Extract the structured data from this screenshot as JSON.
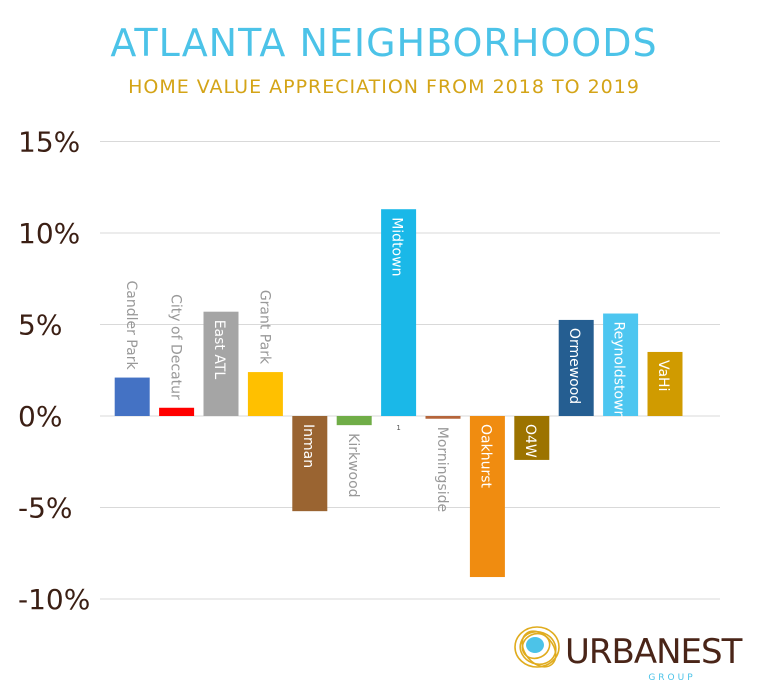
{
  "chart_data": {
    "type": "bar",
    "title": "ATLANTA NEIGHBORHOODS",
    "subtitle": "HOME VALUE APPRECIATION FROM 2018 TO 2019",
    "xlabel": "",
    "ylabel": "",
    "ylim": [
      -10,
      15
    ],
    "yticks": [
      15,
      10,
      5,
      0,
      -5,
      -10
    ],
    "ytick_labels": [
      "15%",
      "10%",
      "5%",
      "0%",
      "-5%",
      "-10%"
    ],
    "grid": true,
    "categories": [
      "Candler Park",
      "City of Decatur",
      "East ATL",
      "Grant Park",
      "Inman",
      "Kirkwood",
      "Midtown",
      "Morningside",
      "Oakhurst",
      "O4W",
      "Ormewood",
      "Reynoldstown",
      "VaHi"
    ],
    "values": [
      2.1,
      0.45,
      5.7,
      2.4,
      -5.2,
      -0.5,
      11.3,
      -0.15,
      -8.8,
      -2.4,
      5.25,
      5.6,
      3.5
    ],
    "colors": [
      "#4472c4",
      "#ff0000",
      "#a5a5a5",
      "#ffc000",
      "#9a6431",
      "#70ad47",
      "#1ab8e8",
      "#b5653a",
      "#f08c10",
      "#9c7300",
      "#255e91",
      "#4dc6f0",
      "#d09b00"
    ],
    "label_inside": [
      false,
      false,
      true,
      false,
      true,
      false,
      true,
      false,
      true,
      true,
      true,
      true,
      true
    ],
    "annotations": [
      {
        "text": "1",
        "category": "Midtown"
      }
    ]
  },
  "logo": {
    "text": "URBANEST",
    "subtext": "GROUP",
    "colors": {
      "brown": "#4a2518",
      "blue": "#4cc3e8",
      "gold": "#e0ac1e"
    }
  }
}
